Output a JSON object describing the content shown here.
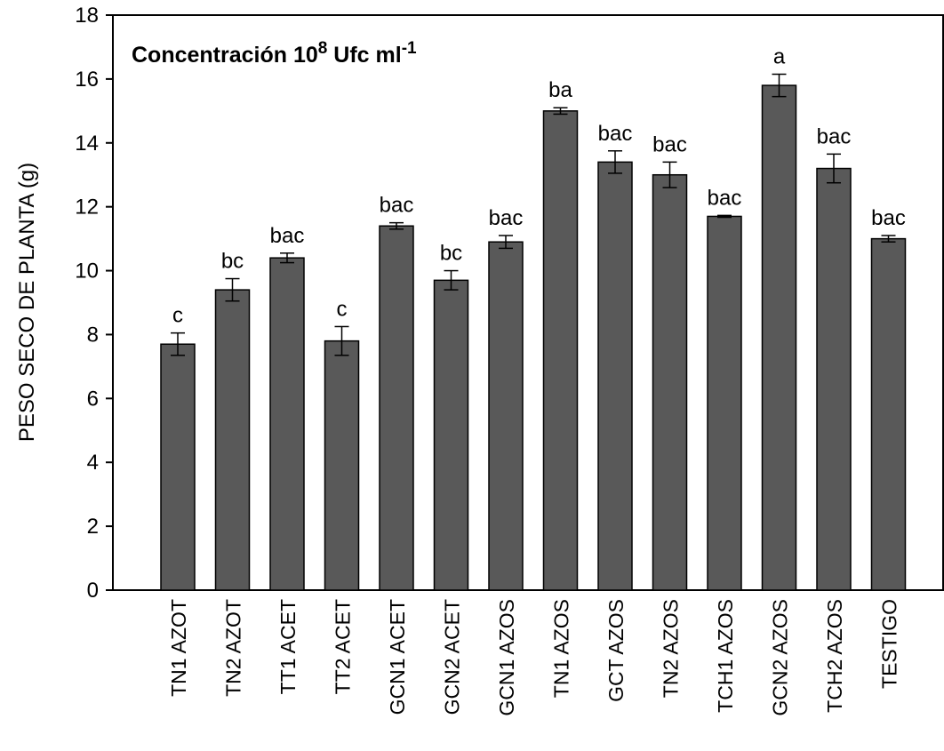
{
  "chart_data": {
    "type": "bar",
    "title_parts": [
      "Concentración 10",
      "8",
      " Ufc ml",
      "-1"
    ],
    "y_label": "PESO SECO DE PLANTA (g)",
    "categories": [
      "TN1 AZOT",
      "TN2 AZOT",
      "TT1 ACET",
      "TT2 ACET",
      "GCN1 ACET",
      "GCN2 ACET",
      "GCN1 AZOS",
      "TN1 AZOS",
      "GCT AZOS",
      "TN2 AZOS",
      "TCH1 AZOS",
      "GCN2 AZOS",
      "TCH2 AZOS",
      "TESTIGO"
    ],
    "values": [
      7.7,
      9.4,
      10.4,
      7.8,
      11.4,
      9.7,
      10.9,
      15.0,
      13.4,
      13.0,
      11.7,
      15.8,
      13.2,
      11.0
    ],
    "errors": [
      0.35,
      0.35,
      0.15,
      0.45,
      0.1,
      0.3,
      0.2,
      0.1,
      0.35,
      0.4,
      0.03,
      0.35,
      0.45,
      0.1
    ],
    "letters": [
      "c",
      "bc",
      "bac",
      "c",
      "bac",
      "bc",
      "bac",
      "ba",
      "bac",
      "bac",
      "bac",
      "a",
      "bac",
      "bac"
    ],
    "color": "#595959",
    "ylim": [
      0,
      18
    ],
    "yticks": [
      0,
      2,
      4,
      6,
      8,
      10,
      12,
      14,
      16,
      18
    ]
  }
}
